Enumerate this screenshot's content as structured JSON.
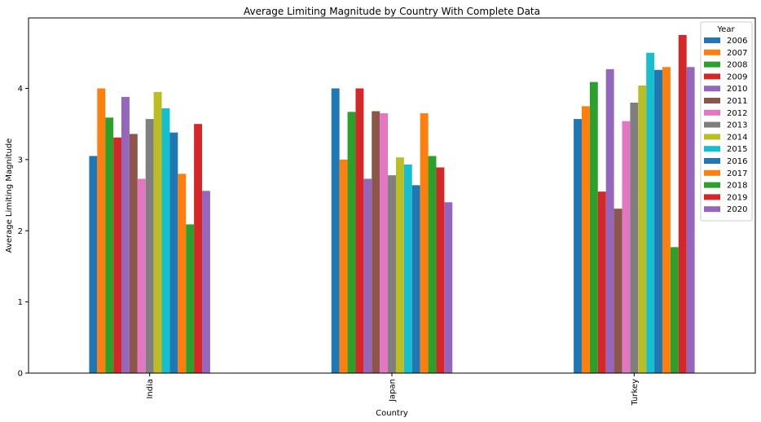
{
  "chart_data": {
    "type": "bar",
    "title": "Average Limiting Magnitude by Country With Complete Data",
    "xlabel": "Country",
    "ylabel": "Average Limiting Magnitude",
    "categories": [
      "India",
      "Japan",
      "Turkey"
    ],
    "ylim": [
      0,
      4.99
    ],
    "yticks": [
      0,
      1,
      2,
      3,
      4
    ],
    "legend": {
      "title": "Year",
      "placement": "top-right"
    },
    "grid": false,
    "series": [
      {
        "name": "2006",
        "color": "#1f77b4",
        "values": [
          3.05,
          4.0,
          3.57
        ]
      },
      {
        "name": "2007",
        "color": "#ff7f0e",
        "values": [
          4.0,
          3.0,
          3.75
        ]
      },
      {
        "name": "2008",
        "color": "#2ca02c",
        "values": [
          3.59,
          3.67,
          4.09
        ]
      },
      {
        "name": "2009",
        "color": "#d62728",
        "values": [
          3.31,
          4.0,
          2.55
        ]
      },
      {
        "name": "2010",
        "color": "#9467bd",
        "values": [
          3.88,
          2.73,
          4.27
        ]
      },
      {
        "name": "2011",
        "color": "#8c564b",
        "values": [
          3.36,
          3.68,
          2.31
        ]
      },
      {
        "name": "2012",
        "color": "#e377c2",
        "values": [
          2.73,
          3.65,
          3.54
        ]
      },
      {
        "name": "2013",
        "color": "#7f7f7f",
        "values": [
          3.57,
          2.78,
          3.8
        ]
      },
      {
        "name": "2014",
        "color": "#bcbd22",
        "values": [
          3.95,
          3.03,
          4.04
        ]
      },
      {
        "name": "2015",
        "color": "#17becf",
        "values": [
          3.72,
          2.93,
          4.5
        ]
      },
      {
        "name": "2016",
        "color": "#1f77b4",
        "values": [
          3.38,
          2.64,
          4.26
        ]
      },
      {
        "name": "2017",
        "color": "#ff7f0e",
        "values": [
          2.8,
          3.65,
          4.3
        ]
      },
      {
        "name": "2018",
        "color": "#2ca02c",
        "values": [
          2.09,
          3.05,
          1.77
        ]
      },
      {
        "name": "2019",
        "color": "#d62728",
        "values": [
          3.5,
          2.89,
          4.75
        ]
      },
      {
        "name": "2020",
        "color": "#9467bd",
        "values": [
          2.56,
          2.4,
          4.3
        ]
      }
    ]
  }
}
